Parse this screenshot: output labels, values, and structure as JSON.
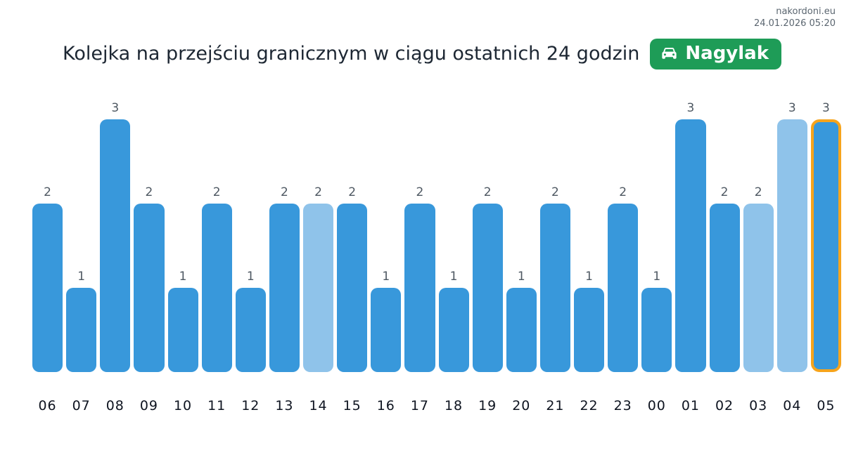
{
  "header": {
    "site": "nakordoni.eu",
    "timestamp": "24.01.2026 05:20"
  },
  "title": "Kolejka na przejściu granicznym w ciągu ostatnich 24 godzin",
  "badge": {
    "label": "Nagylak",
    "icon": "car-front-icon",
    "background": "#1e9c57",
    "foreground": "#ffffff"
  },
  "colors": {
    "bar": "#3898db",
    "bar_light": "#8fc3ea",
    "highlight_outline": "#f6a41c",
    "value_label": "#4e5862",
    "axis_label": "#0e1420",
    "title": "#1d2733",
    "header_text": "#5b6670"
  },
  "chart_data": {
    "type": "bar",
    "title": "Kolejka na przejściu granicznym w ciągu ostatnich 24 godzin",
    "xlabel": "",
    "ylabel": "",
    "ylim": [
      0,
      3
    ],
    "grid": false,
    "legend": false,
    "value_labels_shown": true,
    "categories": [
      "06",
      "07",
      "08",
      "09",
      "10",
      "11",
      "12",
      "13",
      "14",
      "15",
      "16",
      "17",
      "18",
      "19",
      "20",
      "21",
      "22",
      "23",
      "00",
      "01",
      "02",
      "03",
      "04",
      "05"
    ],
    "values": [
      2,
      1,
      3,
      2,
      1,
      2,
      1,
      2,
      2,
      2,
      1,
      2,
      1,
      2,
      1,
      2,
      1,
      2,
      1,
      3,
      2,
      2,
      3,
      3
    ],
    "bar_styles": [
      "normal",
      "normal",
      "normal",
      "normal",
      "normal",
      "normal",
      "normal",
      "normal",
      "light",
      "normal",
      "normal",
      "normal",
      "normal",
      "normal",
      "normal",
      "normal",
      "normal",
      "normal",
      "normal",
      "normal",
      "normal",
      "light",
      "light",
      "highlighted"
    ]
  }
}
